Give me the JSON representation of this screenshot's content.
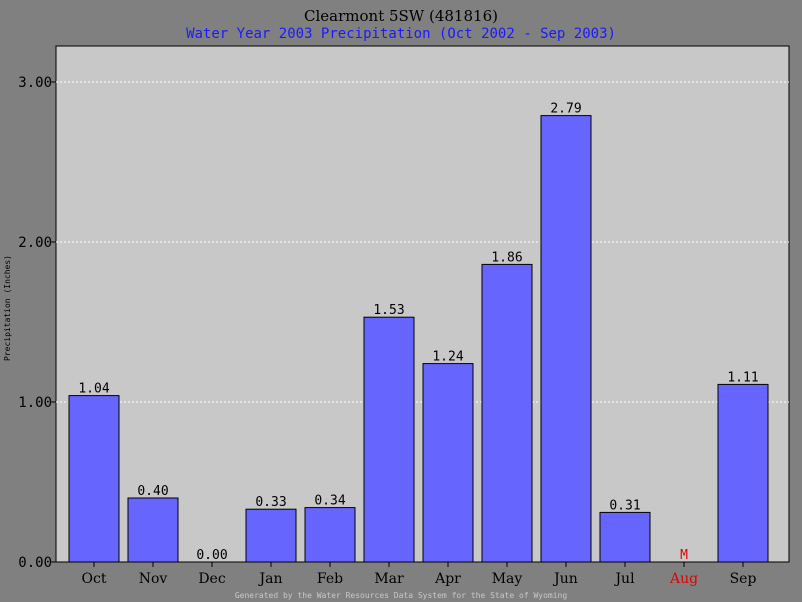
{
  "chart_data": {
    "type": "bar",
    "title": "Clearmont 5SW (481816)",
    "subtitle": "Water Year 2003 Precipitation (Oct 2002 - Sep 2003)",
    "ylabel": "Precipitation (Inches)",
    "xlabel": "",
    "categories": [
      "Oct",
      "Nov",
      "Dec",
      "Jan",
      "Feb",
      "Mar",
      "Apr",
      "May",
      "Jun",
      "Jul",
      "Aug",
      "Sep"
    ],
    "values": [
      1.04,
      0.4,
      0.0,
      0.33,
      0.34,
      1.53,
      1.24,
      1.86,
      2.79,
      0.31,
      null,
      1.11
    ],
    "data_labels": [
      "1.04",
      "0.40",
      "0.00",
      "0.33",
      "0.34",
      "1.53",
      "1.24",
      "1.86",
      "2.79",
      "0.31",
      "M",
      "1.11"
    ],
    "missing_categories": [
      "Aug"
    ],
    "ylim": [
      0,
      3.0
    ],
    "yticks": [
      0,
      1,
      2,
      3
    ],
    "ytick_labels": [
      "0.00",
      "1.00",
      "2.00",
      "3.00"
    ],
    "grid": "horizontal dashed",
    "colors": {
      "bar": "#6666ff",
      "plot_background": "#c8c8c8",
      "frame_background": "#808080",
      "subtitle": "#1a1aff",
      "missing": "#e00000",
      "grid": "#ffffff"
    }
  },
  "footer": "Generated by the Water Resources Data System for the State of Wyoming"
}
